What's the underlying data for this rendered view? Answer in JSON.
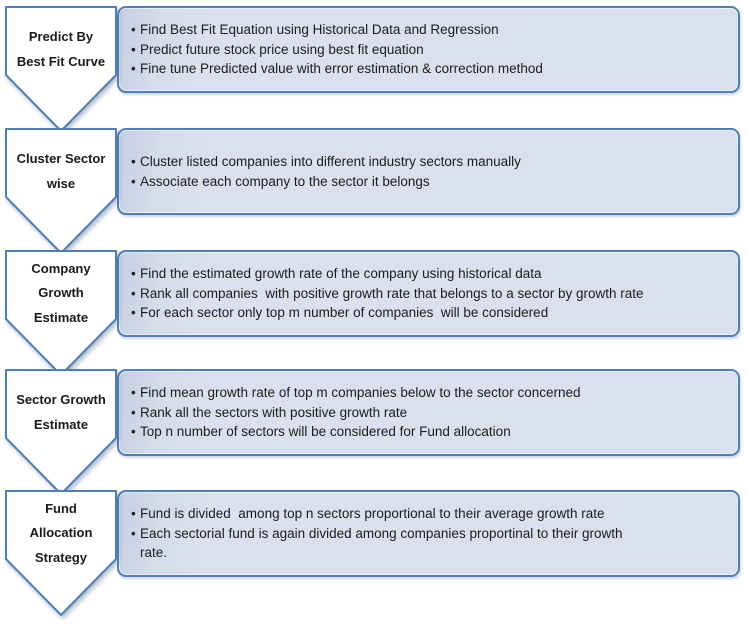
{
  "diagram": {
    "type": "vertical-chevron-process-list",
    "bullet_glyph": "•",
    "colors": {
      "shape_border": "#4e7fbd",
      "arrow_fill": "#ffffff",
      "box_fill": "#dae0ed",
      "box_fill_left_edge": "#c3cfe1",
      "text": "#1c1c1c"
    },
    "rows": [
      {
        "label": "Predict By Best Fit Curve",
        "bullets": [
          "Find Best Fit Equation using Historical Data and Regression",
          "Predict future stock price using best fit equation",
          "Fine tune Predicted value with error estimation & correction method"
        ]
      },
      {
        "label": "Cluster Sector wise",
        "bullets": [
          "Cluster listed companies into different industry sectors manually",
          "Associate each company to the sector it belongs"
        ]
      },
      {
        "label": "Company Growth Estimate",
        "bullets": [
          "Find the estimated growth rate of the company using historical data",
          "Rank all companies  with positive growth rate that belongs to a sector by growth rate",
          "For each sector only top m number of companies  will be considered"
        ]
      },
      {
        "label": "Sector Growth Estimate",
        "bullets": [
          "Find mean growth rate of top m companies below to the sector concerned",
          "Rank all the sectors with positive growth rate",
          "Top n number of sectors will be considered for Fund allocation"
        ]
      },
      {
        "label": "Fund Allocation Strategy",
        "bullets": [
          "Fund is divided  among top n sectors proportional to their average growth rate",
          "Each sectorial fund is again divided among companies proportinal to their growth\nrate."
        ]
      }
    ]
  }
}
